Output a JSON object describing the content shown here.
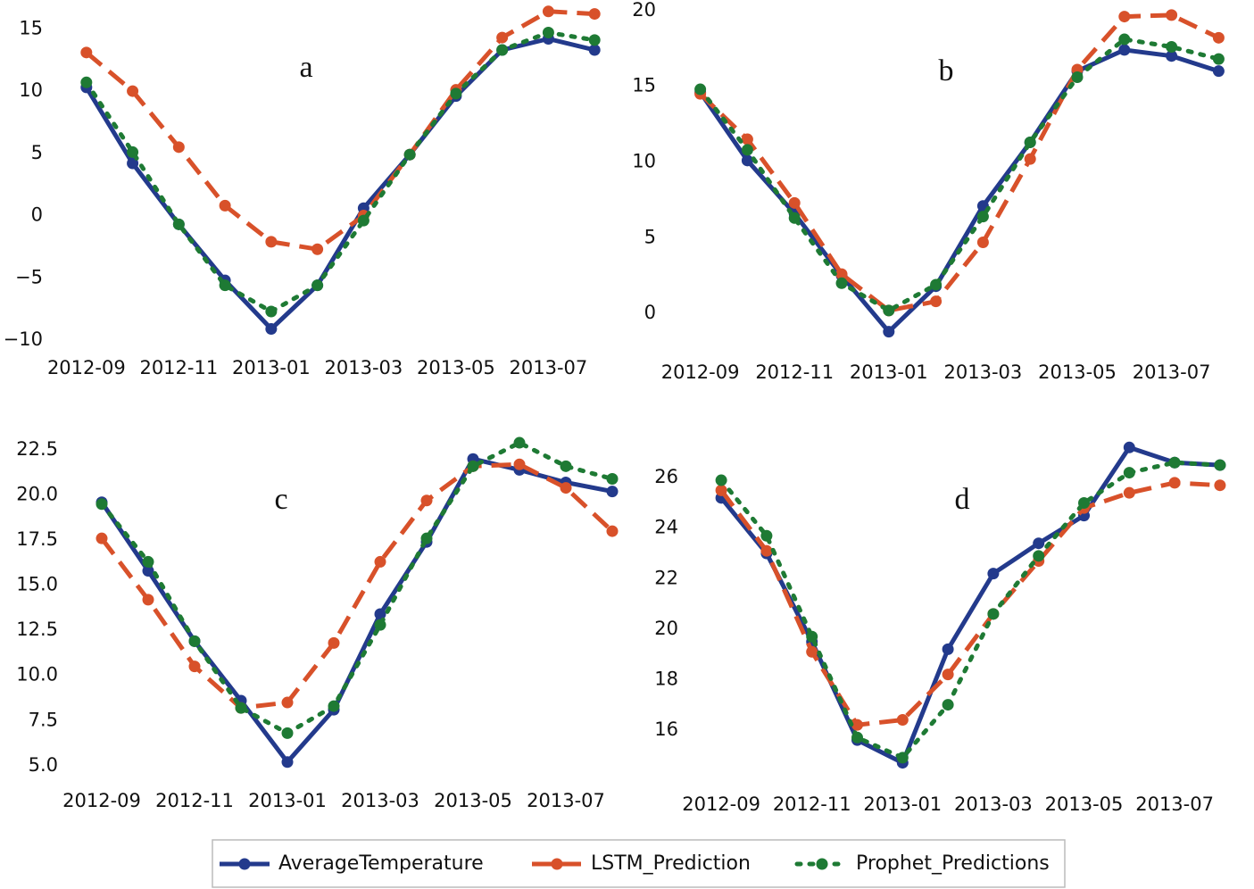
{
  "chart_data": [
    {
      "type": "line",
      "label": "a",
      "x": [
        "2012-09",
        "2012-10",
        "2012-11",
        "2012-12",
        "2013-01",
        "2013-02",
        "2013-03",
        "2013-04",
        "2013-05",
        "2013-06",
        "2013-07",
        "2013-08"
      ],
      "xticks": [
        "2012-09",
        "2012-11",
        "2013-01",
        "2013-03",
        "2013-05",
        "2013-07"
      ],
      "ylim": [
        -11,
        16.6
      ],
      "yticks": [
        {
          "value": -10,
          "label": "−10"
        },
        {
          "value": -5,
          "label": "−5"
        },
        0,
        5,
        10,
        15
      ],
      "series": [
        {
          "name": "AverageTemperature",
          "color": "#233a8c",
          "style": "solid",
          "values": [
            10.3,
            4.2,
            -0.7,
            -5.2,
            -9.1,
            -5.6,
            0.6,
            4.9,
            9.6,
            13.3,
            14.2,
            13.3
          ]
        },
        {
          "name": "LSTM_Prediction",
          "color": "#d8512a",
          "style": "dashed",
          "values": [
            13.1,
            10,
            5.5,
            0.8,
            -2.1,
            -2.7,
            0,
            4.9,
            10.1,
            14.3,
            16.4,
            16.2
          ]
        },
        {
          "name": "Prophet_Predictions",
          "color": "#1e7a34",
          "style": "dotted",
          "values": [
            10.7,
            5.1,
            -0.7,
            -5.6,
            -7.7,
            -5.6,
            -0.4,
            4.9,
            9.8,
            13.3,
            14.7,
            14.1
          ]
        }
      ]
    },
    {
      "type": "line",
      "label": "b",
      "x": [
        "2012-09",
        "2012-10",
        "2012-11",
        "2012-12",
        "2013-01",
        "2013-02",
        "2013-03",
        "2013-04",
        "2013-05",
        "2013-06",
        "2013-07",
        "2013-08"
      ],
      "xticks": [
        "2012-09",
        "2012-11",
        "2013-01",
        "2013-03",
        "2013-05",
        "2013-07"
      ],
      "ylim": [
        -1.4,
        20.4
      ],
      "yticks": [
        0,
        5,
        10,
        15,
        20
      ],
      "series": [
        {
          "name": "AverageTemperature",
          "color": "#233a8c",
          "style": "solid",
          "values": [
            14.6,
            10.1,
            6.6,
            2.5,
            -1.2,
            1.8,
            7.1,
            11.3,
            16.0,
            17.4,
            17.0,
            16.0
          ]
        },
        {
          "name": "LSTM_Prediction",
          "color": "#d8512a",
          "style": "dashed",
          "values": [
            14.5,
            11.5,
            7.3,
            2.6,
            0.2,
            0.8,
            4.7,
            10.2,
            16.1,
            19.6,
            19.7,
            18.2
          ]
        },
        {
          "name": "Prophet_Predictions",
          "color": "#1e7a34",
          "style": "dotted",
          "values": [
            14.8,
            10.8,
            6.3,
            2.0,
            0.2,
            1.9,
            6.4,
            11.3,
            15.6,
            18.1,
            17.6,
            16.8
          ]
        }
      ]
    },
    {
      "type": "line",
      "label": "c",
      "x": [
        "2012-09",
        "2012-10",
        "2012-11",
        "2012-12",
        "2013-01",
        "2013-02",
        "2013-03",
        "2013-04",
        "2013-05",
        "2013-06",
        "2013-07",
        "2013-08"
      ],
      "xticks": [
        "2012-09",
        "2012-11",
        "2013-01",
        "2013-03",
        "2013-05",
        "2013-07"
      ],
      "ylim": [
        3.9,
        23.2
      ],
      "yticks": [
        {
          "value": 5,
          "label": "5.0"
        },
        7.5,
        {
          "value": 10,
          "label": "10.0"
        },
        12.5,
        {
          "value": 15,
          "label": "15.0"
        },
        17.5,
        {
          "value": 20,
          "label": "20.0"
        },
        22.5
      ],
      "series": [
        {
          "name": "AverageTemperature",
          "color": "#233a8c",
          "style": "solid",
          "values": [
            19.6,
            15.8,
            11.9,
            8.6,
            5.2,
            8.1,
            13.4,
            17.4,
            22.0,
            21.4,
            20.7,
            20.2
          ]
        },
        {
          "name": "LSTM_Prediction",
          "color": "#d8512a",
          "style": "dashed",
          "values": [
            17.6,
            14.2,
            10.5,
            8.2,
            8.5,
            11.8,
            16.3,
            19.7,
            21.6,
            21.7,
            20.4,
            18.0
          ]
        },
        {
          "name": "Prophet_Predictions",
          "color": "#1e7a34",
          "style": "dotted",
          "values": [
            19.5,
            16.3,
            11.9,
            8.2,
            6.8,
            8.3,
            12.8,
            17.6,
            21.6,
            22.9,
            21.6,
            20.9
          ]
        }
      ]
    },
    {
      "type": "line",
      "label": "d",
      "x": [
        "2012-09",
        "2012-10",
        "2012-11",
        "2012-12",
        "2013-01",
        "2013-02",
        "2013-03",
        "2013-04",
        "2013-05",
        "2013-06",
        "2013-07",
        "2013-08"
      ],
      "xticks": [
        "2012-09",
        "2012-11",
        "2013-01",
        "2013-03",
        "2013-05",
        "2013-07"
      ],
      "ylim": [
        13.8,
        27.6
      ],
      "yticks": [
        16,
        18,
        20,
        22,
        24,
        26
      ],
      "series": [
        {
          "name": "AverageTemperature",
          "color": "#233a8c",
          "style": "solid",
          "values": [
            25.2,
            23.0,
            19.5,
            15.6,
            14.7,
            19.2,
            22.2,
            23.4,
            24.5,
            27.2,
            26.6,
            26.5
          ]
        },
        {
          "name": "LSTM_Prediction",
          "color": "#d8512a",
          "style": "dashed",
          "values": [
            25.5,
            23.1,
            19.1,
            16.2,
            16.4,
            18.2,
            20.6,
            22.7,
            24.8,
            25.4,
            25.8,
            25.7
          ]
        },
        {
          "name": "Prophet_Predictions",
          "color": "#1e7a34",
          "style": "dotted",
          "values": [
            25.9,
            23.7,
            19.7,
            15.7,
            14.9,
            17.0,
            20.6,
            22.9,
            25.0,
            26.2,
            26.6,
            26.5
          ]
        }
      ]
    }
  ]
}
